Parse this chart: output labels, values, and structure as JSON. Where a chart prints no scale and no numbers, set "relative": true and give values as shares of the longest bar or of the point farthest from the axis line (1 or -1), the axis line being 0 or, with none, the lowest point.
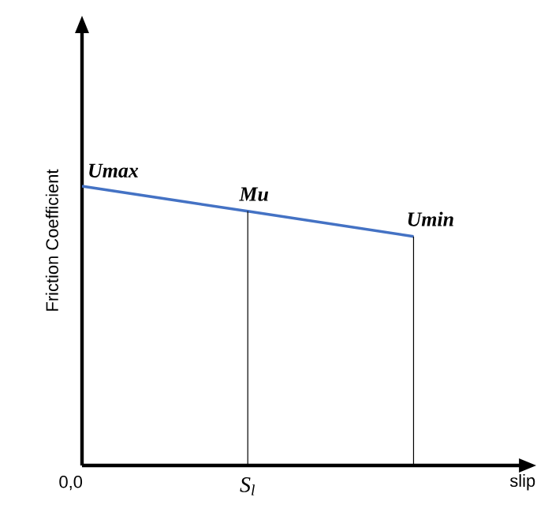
{
  "chart_data": {
    "type": "line",
    "relative": true,
    "xlabel": "slip",
    "ylabel": "Friction Coefficient",
    "marker": "none",
    "line_style": "solid",
    "categories": [
      null,
      null,
      null
    ],
    "series": [
      {
        "color": "#4472c4",
        "values": [
          1,
          0.91,
          0.82
        ]
      }
    ],
    "annotations": [
      "Umax",
      "Mu",
      "Umin",
      "S$_{l}$",
      "0,0"
    ]
  }
}
